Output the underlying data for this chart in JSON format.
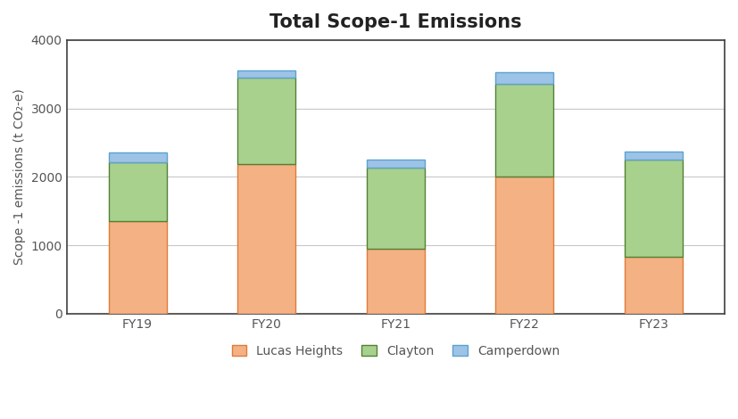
{
  "categories": [
    "FY19",
    "FY20",
    "FY21",
    "FY22",
    "FY23"
  ],
  "lucas_heights": [
    1350,
    2190,
    950,
    2000,
    830
  ],
  "clayton": [
    870,
    1260,
    1180,
    1360,
    1420
  ],
  "camperdown": [
    140,
    105,
    120,
    175,
    115
  ],
  "colors": {
    "lucas_heights": "#F4B183",
    "clayton": "#A9D18E",
    "camperdown": "#9DC3E6"
  },
  "edge_colors": {
    "lucas_heights": "#E07B39",
    "clayton": "#538135",
    "camperdown": "#5BA3D0"
  },
  "title": "Total Scope-1 Emissions",
  "ylabel": "Scope -1 emissions (t CO₂-e)",
  "ylim": [
    0,
    4000
  ],
  "yticks": [
    0,
    1000,
    2000,
    3000,
    4000
  ],
  "legend_labels": [
    "Lucas Heights",
    "Clayton",
    "Camperdown"
  ],
  "title_fontsize": 15,
  "label_fontsize": 10,
  "tick_fontsize": 10,
  "legend_fontsize": 10,
  "bar_width": 0.45,
  "background_color": "#ffffff",
  "grid_color": "#c8c8c8",
  "spine_color": "#404040"
}
